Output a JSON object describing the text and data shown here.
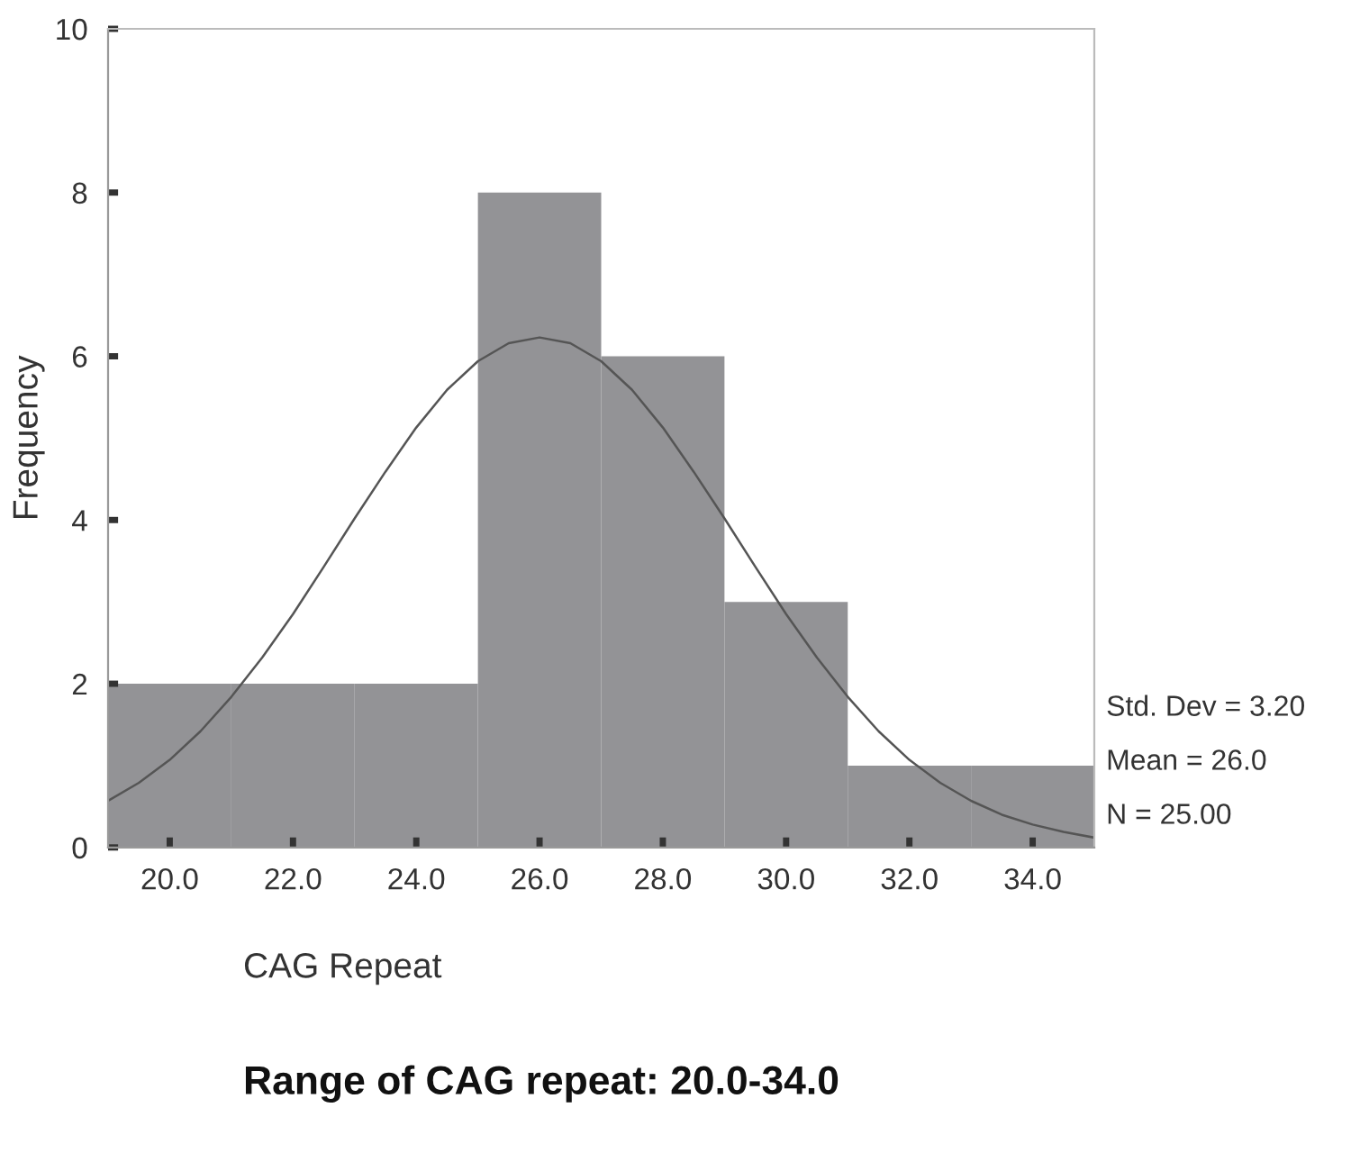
{
  "chart_data": {
    "type": "histogram",
    "bins": [
      19,
      21,
      23,
      25,
      27,
      29,
      31,
      33,
      35
    ],
    "values": [
      2,
      2,
      2,
      8,
      6,
      3,
      1,
      1
    ],
    "color": "#939396",
    "series": [
      {
        "type": "line",
        "color": "#555555",
        "x": [
          19,
          19.5,
          20,
          20.5,
          21,
          21.5,
          22,
          22.5,
          23,
          23.5,
          24,
          24.5,
          25,
          25.5,
          26,
          26.5,
          27,
          27.5,
          28,
          28.5,
          29,
          29.5,
          30,
          30.5,
          31,
          31.5,
          32,
          32.5,
          33,
          33.5,
          34,
          34.5,
          35
        ],
        "values": [
          0.57,
          0.79,
          1.07,
          1.42,
          1.84,
          2.32,
          2.85,
          3.43,
          4.02,
          4.59,
          5.13,
          5.59,
          5.94,
          6.16,
          6.23,
          6.16,
          5.94,
          5.59,
          5.13,
          4.59,
          4.02,
          3.43,
          2.85,
          2.32,
          1.84,
          1.42,
          1.07,
          0.79,
          0.57,
          0.4,
          0.28,
          0.19,
          0.12
        ]
      }
    ],
    "xlim": [
      19,
      35
    ],
    "xticks": [
      {
        "value": 20,
        "label": "20.0"
      },
      {
        "value": 22,
        "label": "22.0"
      },
      {
        "value": 24,
        "label": "24.0"
      },
      {
        "value": 26,
        "label": "26.0"
      },
      {
        "value": 28,
        "label": "28.0"
      },
      {
        "value": 30,
        "label": "30.0"
      },
      {
        "value": 32,
        "label": "32.0"
      },
      {
        "value": 34,
        "label": "34.0"
      }
    ],
    "ylim": [
      0,
      10
    ],
    "yticks": [
      0,
      2,
      4,
      6,
      8,
      10
    ],
    "xlabel": "CAG Repeat",
    "ylabel": "Frequency",
    "annotations": [
      "Std. Dev = 3.20",
      "Mean = 26.0",
      "N = 25.00",
      "Range of CAG repeat: 20.0-34.0"
    ],
    "grid": false
  }
}
